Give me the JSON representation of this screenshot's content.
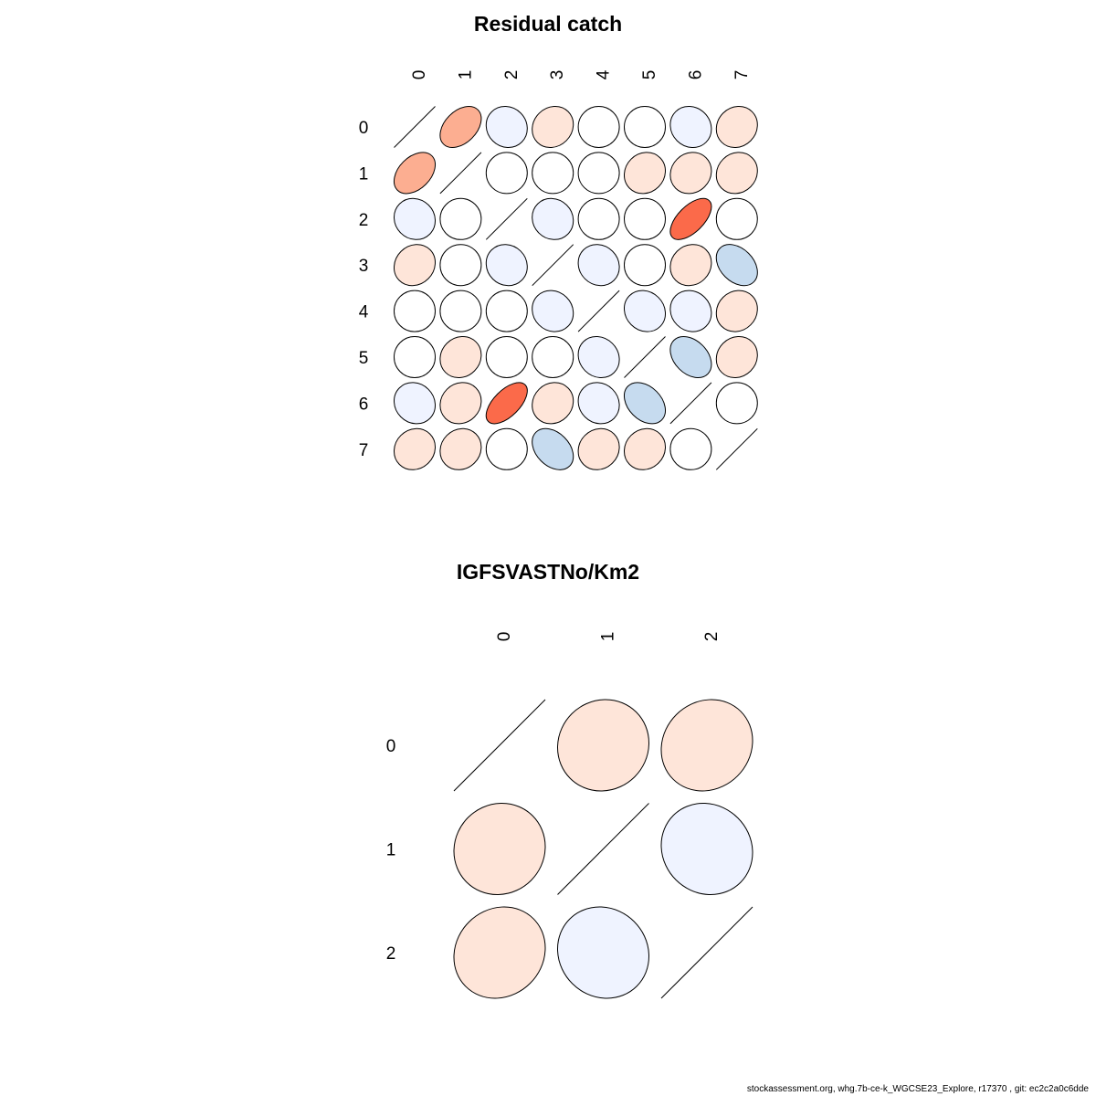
{
  "footer": "stockassessment.org, whg.7b-ce-k_WGCSE23_Explore, r17370 , git: ec2c2a0c6dde",
  "colors": {
    "strong_positive": "#fb6a4a",
    "moderate_positive": "#fcae91",
    "weak_positive": "#fee5d9",
    "neutral": "#ffffff",
    "weak_negative": "#eff3ff",
    "moderate_negative": "#c6dbef",
    "outline": "#000000"
  },
  "chart_data": [
    {
      "type": "heatmap",
      "subtype": "correlation-ellipse",
      "title": "Residual catch",
      "labels": [
        "0",
        "1",
        "2",
        "3",
        "4",
        "5",
        "6",
        "7"
      ],
      "matrix": [
        [
          1.0,
          0.4,
          -0.08,
          0.12,
          0.0,
          0.0,
          -0.1,
          0.1
        ],
        [
          0.4,
          1.0,
          0.0,
          0.0,
          0.0,
          0.1,
          0.1,
          0.1
        ],
        [
          -0.08,
          0.0,
          1.0,
          -0.08,
          0.0,
          0.0,
          0.6,
          0.0
        ],
        [
          0.12,
          0.0,
          -0.08,
          1.0,
          -0.1,
          0.0,
          0.1,
          -0.35
        ],
        [
          0.0,
          0.0,
          0.0,
          -0.1,
          1.0,
          -0.12,
          -0.1,
          0.1
        ],
        [
          0.0,
          0.1,
          0.0,
          0.0,
          -0.12,
          1.0,
          -0.35,
          0.1
        ],
        [
          -0.1,
          0.1,
          0.6,
          0.1,
          -0.1,
          -0.35,
          1.0,
          0.0
        ],
        [
          0.1,
          0.1,
          0.0,
          -0.35,
          0.1,
          0.1,
          0.0,
          1.0
        ]
      ]
    },
    {
      "type": "heatmap",
      "subtype": "correlation-ellipse",
      "title": "IGFSVASTNo/Km2",
      "labels": [
        "0",
        "1",
        "2"
      ],
      "matrix": [
        [
          1.0,
          0.05,
          0.1
        ],
        [
          0.05,
          1.0,
          -0.08
        ],
        [
          0.1,
          -0.08,
          1.0
        ]
      ]
    }
  ]
}
